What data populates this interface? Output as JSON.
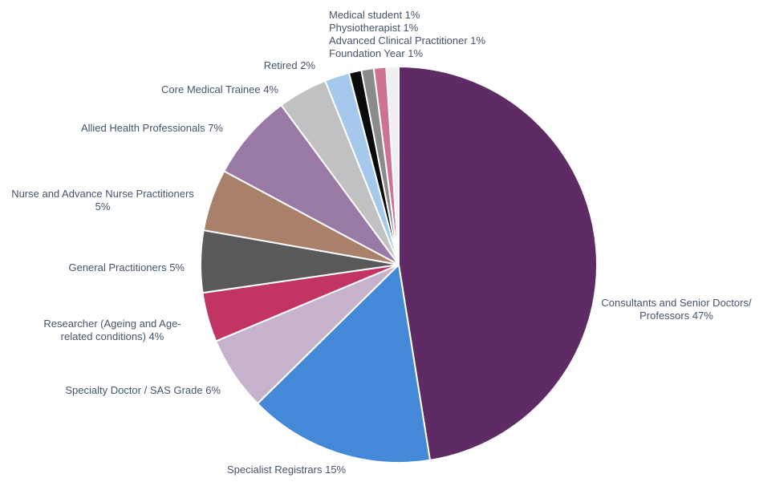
{
  "page": {
    "background": "#ffffff",
    "text_color": "#44546A"
  },
  "chart_data": {
    "type": "pie",
    "title": "",
    "legend": "none",
    "direction": "clockwise",
    "start_angle_deg": 0,
    "label_unit": "%",
    "slice_border_color": "#ffffff",
    "slices": [
      {
        "label": "Consultants and Senior Doctors/Professors",
        "value": 47,
        "color": "#5F2B64"
      },
      {
        "label": "Specialist Registrars",
        "value": 15,
        "color": "#4489D8"
      },
      {
        "label": "Specialty Doctor / SAS Grade",
        "value": 6,
        "color": "#C7B2CE"
      },
      {
        "label": "Researcher (Ageing and Age-related conditions)",
        "value": 4,
        "color": "#C23461"
      },
      {
        "label": "General Practitioners",
        "value": 5,
        "color": "#5A5859"
      },
      {
        "label": "Nurse and Advance Nurse Practitioners",
        "value": 5,
        "color": "#A9806A"
      },
      {
        "label": "Allied Health Professionals",
        "value": 7,
        "color": "#987AA4"
      },
      {
        "label": "Core Medical Trainee",
        "value": 4,
        "color": "#C1C0C2"
      },
      {
        "label": "Retired",
        "value": 2,
        "color": "#A5C8ED"
      },
      {
        "label": "Medical student",
        "value": 1,
        "color": "#0B0B0B"
      },
      {
        "label": "Physiotherapist",
        "value": 1,
        "color": "#8B8B8E"
      },
      {
        "label": "Advanced Clinical Practitioner",
        "value": 1,
        "color": "#CD7292"
      },
      {
        "label": "Foundation Year",
        "value": 1,
        "color": "#EFEEF0"
      }
    ],
    "annotations": [
      {
        "id": "medical-student",
        "text": "Medical student 1%"
      },
      {
        "id": "physiotherapist",
        "text": "Physiotherapist 1%"
      },
      {
        "id": "advanced-clinical-practitioner",
        "text": "Advanced Clinical Practitioner 1%"
      },
      {
        "id": "foundation-year",
        "text": "Foundation Year 1%"
      },
      {
        "id": "retired",
        "text": "Retired 2%"
      },
      {
        "id": "core-medical-trainee",
        "text": "Core Medical Trainee 4%"
      },
      {
        "id": "allied-health-professionals",
        "text": "Allied Health Professionals 7%"
      },
      {
        "id": "nurse-and-advance-nurse-practitioners",
        "text": "Nurse and Advance Nurse Practitioners\n5%"
      },
      {
        "id": "general-practitioners",
        "text": "General Practitioners 5%"
      },
      {
        "id": "researcher-ageing",
        "text": "Researcher (Ageing and Age-\nrelated conditions) 4%"
      },
      {
        "id": "specialty-doctor-sas-grade",
        "text": "Specialty Doctor / SAS Grade 6%"
      },
      {
        "id": "specialist-registrars",
        "text": "Specialist Registrars 15%"
      },
      {
        "id": "consultants-and-senior-doctors",
        "text": "Consultants and Senior Doctors/\nProfessors 47%"
      }
    ]
  }
}
